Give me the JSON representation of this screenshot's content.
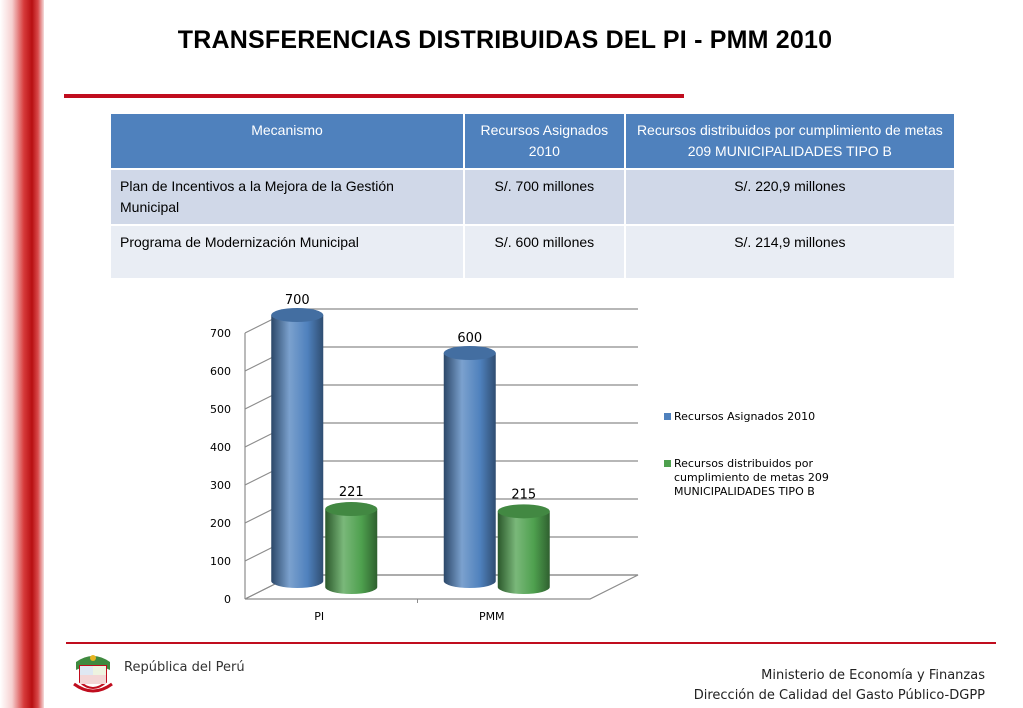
{
  "title": "TRANSFERENCIAS DISTRIBUIDAS DEL PI - PMM 2010",
  "table": {
    "headers": [
      "Mecanismo",
      "Recursos Asignados 2010",
      "Recursos distribuidos por cumplimiento de metas 209 MUNICIPALIDADES TIPO B"
    ],
    "rows": [
      [
        "Plan de Incentivos a la Mejora de la Gestión Municipal",
        "S/. 700 millones",
        "S/.  220,9 millones"
      ],
      [
        "Programa de Modernización Municipal",
        "S/. 600 millones",
        "S/.  214,9 millones"
      ]
    ]
  },
  "chart_data": {
    "type": "bar",
    "categories": [
      "PI",
      "PMM"
    ],
    "series": [
      {
        "name": "Recursos Asignados 2010",
        "values": [
          700,
          600
        ],
        "labels": [
          "700",
          "600"
        ],
        "color": "#4f81bd"
      },
      {
        "name": "Recursos distribuidos por cumplimiento de metas 209 MUNICIPALIDADES TIPO B",
        "values": [
          220.9,
          214.9
        ],
        "labels": [
          "221",
          "215"
        ],
        "color": "#4ea04e"
      }
    ],
    "ylim": [
      0,
      700
    ],
    "yticks": [
      "0",
      "100",
      "200",
      "300",
      "400",
      "500",
      "600",
      "700"
    ],
    "grid": true,
    "legend_position": "right",
    "style": "3d-cylinder"
  },
  "footer": {
    "left_text": "República del Perú",
    "ministry": "Ministerio de Economía y Finanzas",
    "department": "Dirección de Calidad del Gasto Público-DGPP"
  }
}
